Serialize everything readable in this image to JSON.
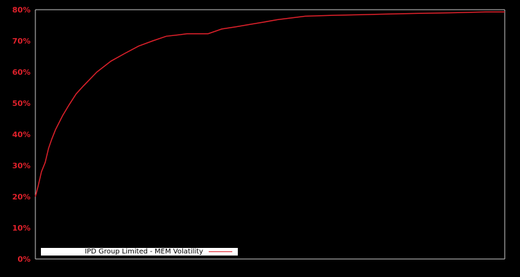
{
  "chart_data": {
    "type": "line",
    "title": "",
    "xlabel": "",
    "ylabel": "",
    "ylim": [
      0,
      80
    ],
    "y_ticks": [
      "0%",
      "10%",
      "20%",
      "30%",
      "40%",
      "50%",
      "60%",
      "70%",
      "80%"
    ],
    "x_ticks": [],
    "grid": false,
    "legend_position": "bottom-left",
    "series": [
      {
        "name": "IPD Group Limited - MEM Volatility",
        "color": "#e0212b",
        "x": [
          0,
          0.6,
          1.3,
          2.1,
          2.8,
          3.5,
          4.3,
          5.8,
          7.2,
          8.7,
          10.2,
          13.1,
          16.1,
          19.1,
          22.0,
          25.0,
          27.9,
          30.9,
          32.3,
          36.8,
          39.7,
          42.7,
          45.7,
          48.6,
          51.6,
          57.5,
          63.4,
          69.3,
          75.2,
          81.1,
          88.5,
          95.9,
          100
        ],
        "values": [
          20,
          23.5,
          28,
          31,
          35.5,
          38.5,
          41.5,
          46,
          49.5,
          53,
          55.5,
          60,
          63.5,
          66,
          68.3,
          70,
          71.5,
          72,
          72.3,
          72.3,
          73.8,
          74.5,
          75.3,
          76,
          76.8,
          77.9,
          78.2,
          78.4,
          78.6,
          78.8,
          79,
          79.3,
          79.3
        ]
      }
    ]
  },
  "legend": {
    "label": "IPD Group Limited - MEM Volatility"
  },
  "colors": {
    "background": "#000000",
    "axis": "#cccccc",
    "series": "#e0212b",
    "tick_text": "#e0212b"
  }
}
